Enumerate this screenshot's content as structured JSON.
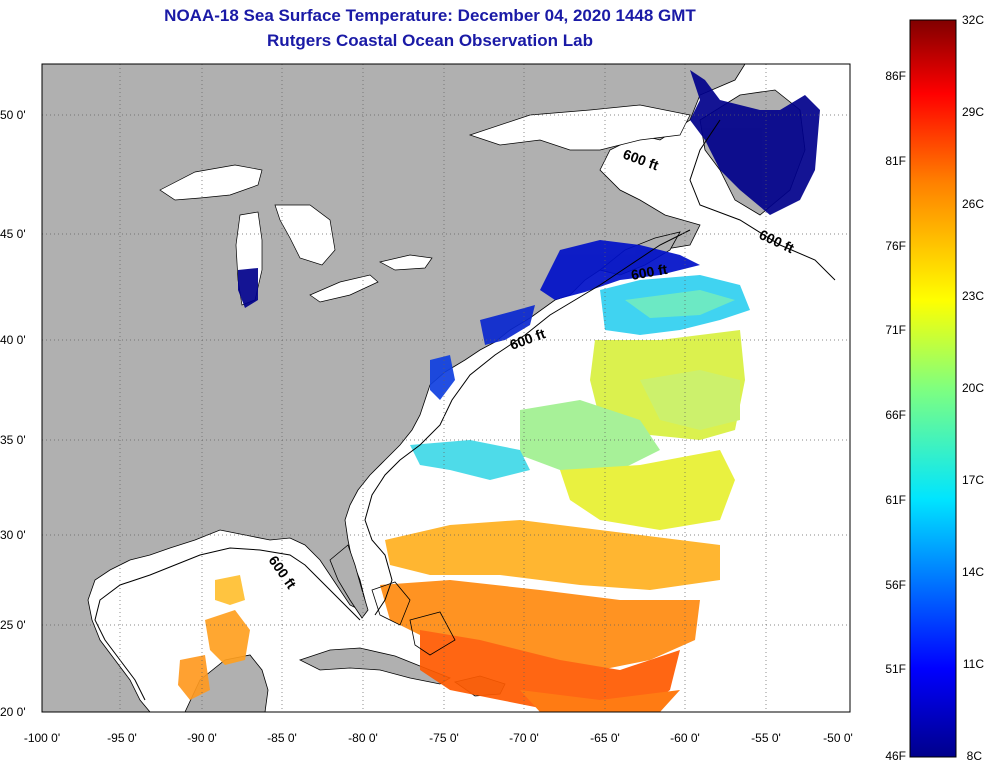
{
  "title": "NOAA-18 Sea Surface Temperature:  December 04, 2020 1448 GMT",
  "subtitle": "Rutgers Coastal Ocean Observation Lab",
  "map": {
    "lon_range": [
      -100,
      -50
    ],
    "lat_range": [
      20,
      52.5
    ],
    "x_ticks": [
      "-100 0'",
      "-95 0'",
      "-90 0'",
      "-85 0'",
      "-80 0'",
      "-75 0'",
      "-70 0'",
      "-65 0'",
      "-60 0'",
      "-55 0'",
      "-50 0'"
    ],
    "y_ticks": [
      "50 0'",
      "45 0'",
      "40 0'",
      "35 0'",
      "30 0'",
      "25 0'",
      "20 0'"
    ],
    "contour_label": "600 ft",
    "land_color": "#b0b0b0",
    "water_color": "#ffffff"
  },
  "colorbar": {
    "celsius_labels": [
      "32C",
      "29C",
      "26C",
      "23C",
      "20C",
      "17C",
      "14C",
      "11C",
      "8C"
    ],
    "fahrenheit_labels": [
      "86F",
      "81F",
      "76F",
      "71F",
      "66F",
      "61F",
      "56F",
      "51F",
      "46F"
    ],
    "min_c": 8,
    "max_c": 32
  }
}
